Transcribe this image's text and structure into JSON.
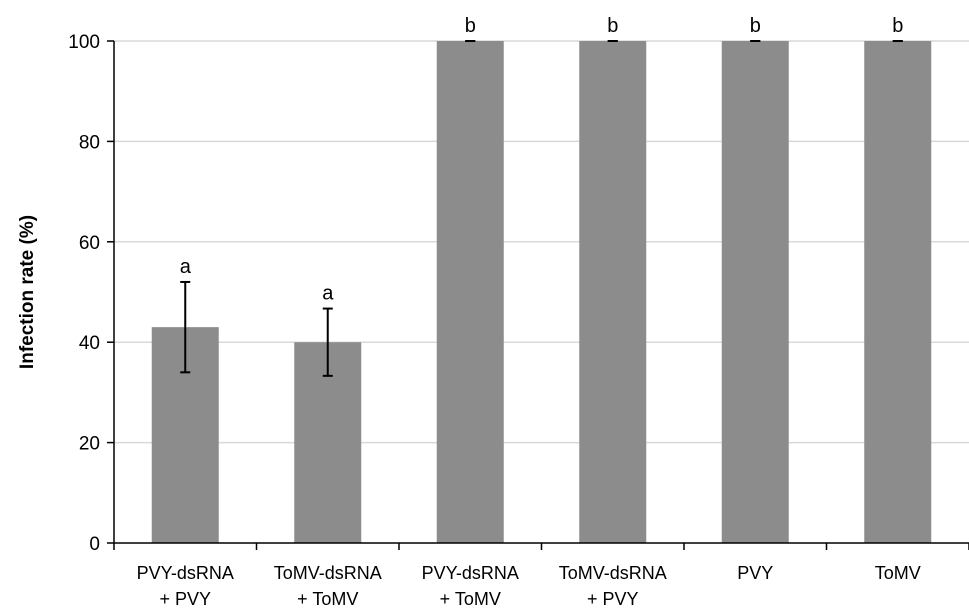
{
  "chart_data": {
    "type": "bar",
    "title": "",
    "xlabel": "",
    "ylabel": "Infection rate (%)",
    "ylim": [
      0,
      100
    ],
    "yticks": [
      0,
      20,
      40,
      60,
      80,
      100
    ],
    "grid": true,
    "bar_color": "#8c8c8c",
    "categories": [
      [
        "PVY-dsRNA",
        "+ PVY"
      ],
      [
        "ToMV-dsRNA",
        "+ ToMV"
      ],
      [
        "PVY-dsRNA",
        "+ ToMV"
      ],
      [
        "ToMV-dsRNA",
        "+ PVY"
      ],
      [
        "PVY"
      ],
      [
        "ToMV"
      ]
    ],
    "values": [
      43,
      40,
      100,
      100,
      100,
      100
    ],
    "error_low": [
      34,
      33.3,
      100,
      100,
      100,
      100
    ],
    "error_high": [
      52,
      46.7,
      100,
      100,
      100,
      100
    ],
    "significance": [
      "a",
      "a",
      "b",
      "b",
      "b",
      "b"
    ]
  }
}
